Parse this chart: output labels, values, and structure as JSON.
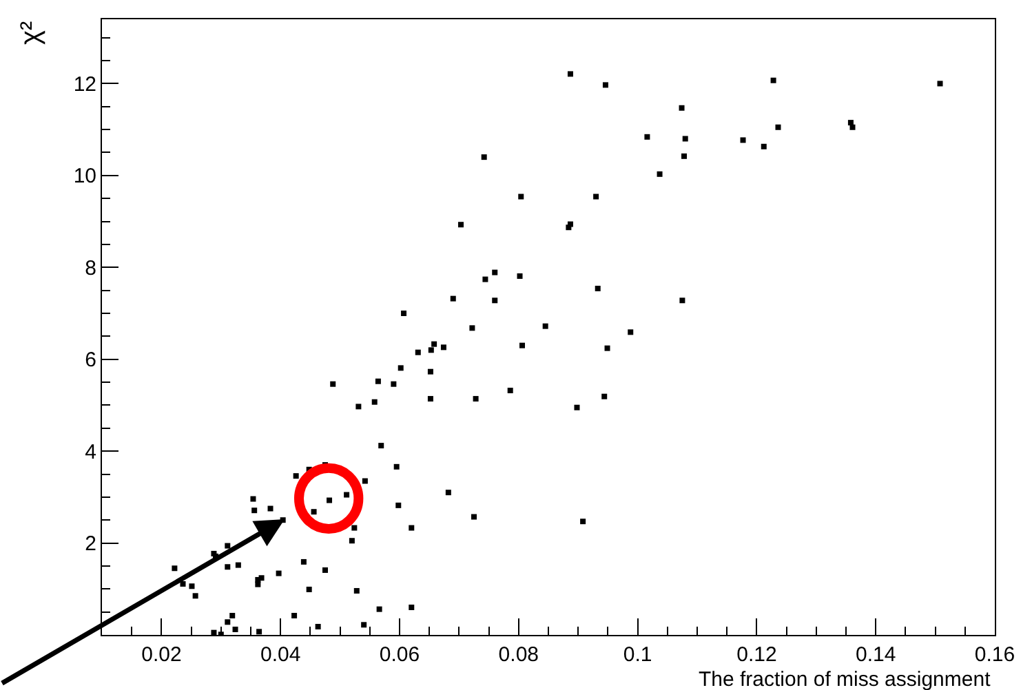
{
  "chart_data": {
    "type": "scatter",
    "xlabel": "The fraction of miss assignment",
    "ylabel": "χ²",
    "xlim": [
      0.01,
      0.16
    ],
    "ylim": [
      0,
      13.4
    ],
    "xticks": [
      {
        "value": 0.02,
        "label": "0.02"
      },
      {
        "value": 0.04,
        "label": "0.04"
      },
      {
        "value": 0.06,
        "label": "0.06"
      },
      {
        "value": 0.08,
        "label": "0.08"
      },
      {
        "value": 0.1,
        "label": "0.1"
      },
      {
        "value": 0.12,
        "label": "0.12"
      },
      {
        "value": 0.14,
        "label": "0.14"
      },
      {
        "value": 0.16,
        "label": "0.16"
      }
    ],
    "yticks": [
      2,
      4,
      6,
      8,
      10,
      12
    ],
    "marker": "square",
    "series": [
      {
        "color": "#000000",
        "x": [
          0.0569,
          0.0595,
          0.0475,
          0.0448,
          0.0426,
          0.0542,
          0.0354,
          0.0482,
          0.0511,
          0.0598,
          0.0356,
          0.0383,
          0.0456,
          0.0404,
          0.0524,
          0.062,
          0.052,
          0.0311,
          0.0288,
          0.0291,
          0.0439,
          0.0311,
          0.0329,
          0.0475,
          0.0222,
          0.0397,
          0.0368,
          0.0362,
          0.0362,
          0.0236,
          0.0251,
          0.0257,
          0.0448,
          0.0528,
          0.0566,
          0.0423,
          0.0319,
          0.0311,
          0.0324,
          0.0463,
          0.054,
          0.0288,
          0.03,
          0.0364,
          0.062,
          0.0682,
          0.0725,
          0.0908,
          0.076,
          0.0744,
          0.0802,
          0.069,
          0.076,
          0.0607,
          0.0722,
          0.0845,
          0.0806,
          0.0658,
          0.0653,
          0.0674,
          0.0631,
          0.0602,
          0.0652,
          0.0488,
          0.0564,
          0.059,
          0.0531,
          0.0558,
          0.0652,
          0.0728,
          0.0786,
          0.0887,
          0.0946,
          0.1228,
          0.1508,
          0.1074,
          0.1016,
          0.108,
          0.1236,
          0.1177,
          0.1212,
          0.1358,
          0.1361,
          0.1078,
          0.1037,
          0.0804,
          0.093,
          0.0884,
          0.0887,
          0.0933,
          0.1075,
          0.0703,
          0.0742,
          0.0949,
          0.0988,
          0.0944,
          0.0898
        ],
        "values": [
          4.12,
          3.66,
          3.7,
          3.6,
          3.46,
          3.35,
          2.96,
          2.93,
          3.05,
          2.82,
          2.71,
          2.75,
          2.68,
          2.5,
          2.33,
          2.33,
          2.05,
          1.94,
          1.77,
          1.71,
          1.59,
          1.48,
          1.52,
          1.41,
          1.45,
          1.34,
          1.24,
          1.2,
          1.1,
          1.11,
          1.06,
          0.85,
          0.99,
          0.96,
          0.56,
          0.42,
          0.42,
          0.28,
          0.12,
          0.18,
          0.22,
          0.05,
          0.01,
          0.07,
          0.6,
          3.1,
          2.57,
          2.47,
          7.89,
          7.74,
          7.81,
          7.32,
          7.28,
          7.0,
          6.68,
          6.72,
          6.3,
          6.33,
          6.2,
          6.26,
          6.15,
          5.81,
          5.73,
          5.46,
          5.52,
          5.46,
          4.97,
          5.07,
          5.14,
          5.14,
          5.32,
          12.21,
          11.97,
          12.07,
          12.0,
          11.47,
          10.84,
          10.8,
          11.05,
          10.77,
          10.63,
          11.15,
          11.05,
          10.42,
          10.03,
          9.54,
          9.54,
          8.87,
          8.94,
          7.54,
          7.28,
          8.93,
          10.4,
          6.24,
          6.59,
          5.19,
          4.95
        ]
      }
    ]
  }
}
